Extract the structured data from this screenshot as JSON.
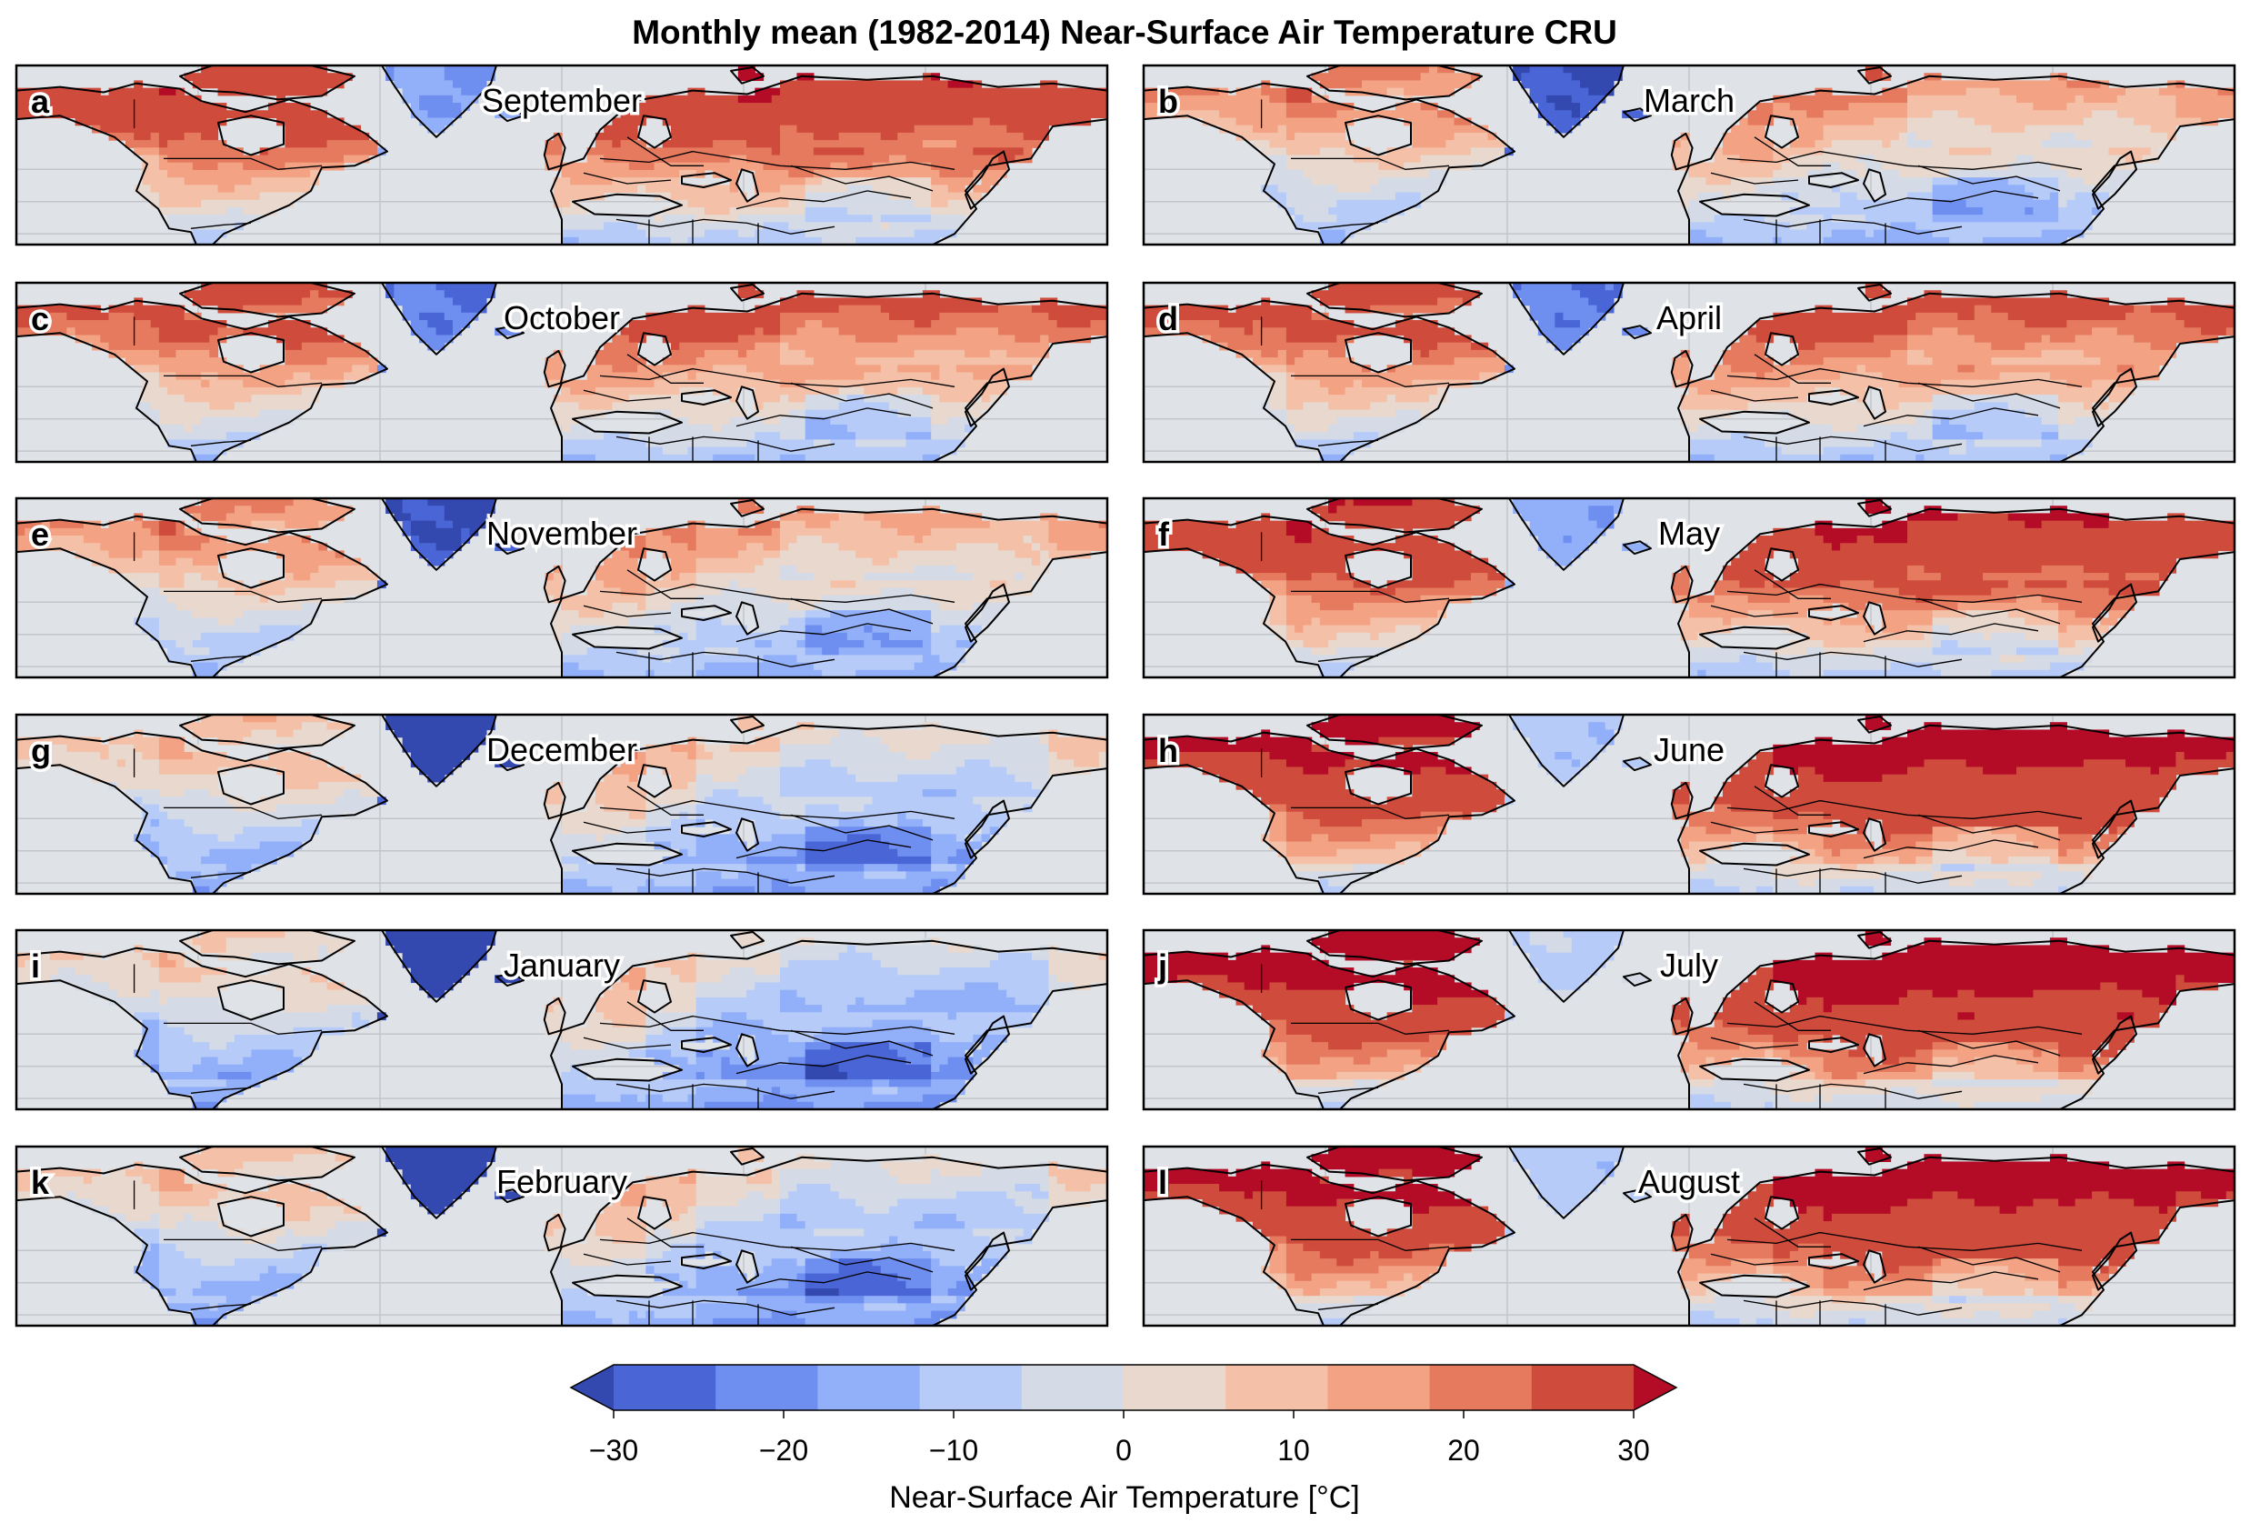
{
  "title": "Monthly mean (1982-2014) Near-Surface Air Temperature CRU",
  "colors": {
    "ocean": "#dfe2e6",
    "grid": "#c2c6cb",
    "border": "#000000",
    "bins": [
      "#4a66d6",
      "#6f8ff0",
      "#92b0f9",
      "#b6cbf8",
      "#d5dbe6",
      "#e8d8ce",
      "#f4c1a8",
      "#f3a284",
      "#e57a5e",
      "#cf4b3c"
    ],
    "under": "#3349b0",
    "over": "#b40c27"
  },
  "panels": [
    {
      "letter": "a",
      "month": "September",
      "anom": 4
    },
    {
      "letter": "b",
      "month": "March",
      "anom": -10
    },
    {
      "letter": "c",
      "month": "October",
      "anom": -3
    },
    {
      "letter": "d",
      "month": "April",
      "anom": -2
    },
    {
      "letter": "e",
      "month": "November",
      "anom": -11
    },
    {
      "letter": "f",
      "month": "May",
      "anom": 6
    },
    {
      "letter": "g",
      "month": "December",
      "anom": -18
    },
    {
      "letter": "h",
      "month": "June",
      "anom": 13
    },
    {
      "letter": "i",
      "month": "January",
      "anom": -21
    },
    {
      "letter": "j",
      "month": "July",
      "anom": 16
    },
    {
      "letter": "k",
      "month": "February",
      "anom": -19
    },
    {
      "letter": "l",
      "month": "August",
      "anom": 14
    }
  ],
  "colorbar": {
    "label": "Near-Surface Air Temperature [°C]",
    "ticks": [
      "−30",
      "−20",
      "−10",
      "0",
      "10",
      "20",
      "30"
    ],
    "min": -30,
    "max": 30,
    "step": 5,
    "extend": "both"
  }
}
